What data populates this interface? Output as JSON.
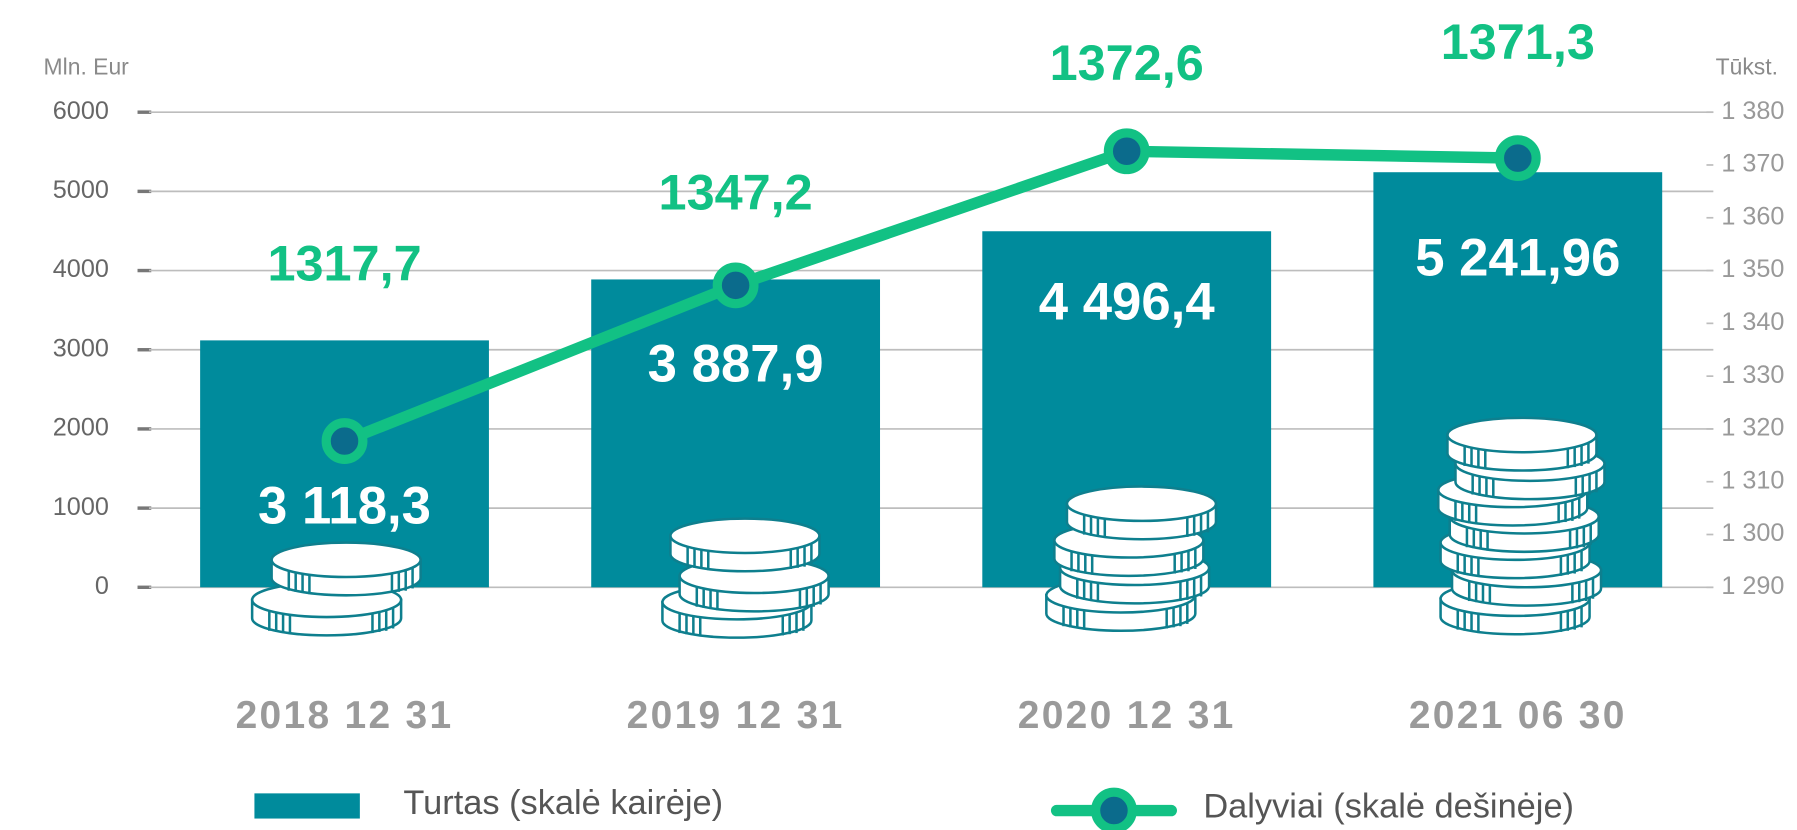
{
  "chart_data": {
    "type": "bar",
    "categories": [
      "2018 12 31",
      "2019 12 31",
      "2020 12 31",
      "2021 06 30"
    ],
    "y_label": "Mln. Eur",
    "y2_label": "Tūkst.",
    "ylim": [
      0,
      6000
    ],
    "yticks": [
      0,
      1000,
      2000,
      3000,
      4000,
      5000,
      6000
    ],
    "y2lim": [
      1290,
      1380
    ],
    "y2ticks": [
      {
        "value": 1290,
        "label": "1 290"
      },
      {
        "value": 1300,
        "label": "1 300"
      },
      {
        "value": 1310,
        "label": "1 310"
      },
      {
        "value": 1320,
        "label": "1 320"
      },
      {
        "value": 1330,
        "label": "1 330"
      },
      {
        "value": 1340,
        "label": "1 340"
      },
      {
        "value": 1350,
        "label": "1 350"
      },
      {
        "value": 1360,
        "label": "1 360"
      },
      {
        "value": 1370,
        "label": "1 370"
      },
      {
        "value": 1380,
        "label": "1 380"
      }
    ],
    "grid": true,
    "series": [
      {
        "name": "Turtas (skalė kairėje)",
        "type": "bar",
        "color": "#008b9c",
        "values": [
          3118.3,
          3887.9,
          4496.4,
          5241.96
        ],
        "value_labels": [
          "3 118,3",
          "3 887,9",
          "4 496,4",
          "5 241,96"
        ]
      },
      {
        "name": "Dalyviai (skalė dešinėje)",
        "type": "line",
        "axis": "y2",
        "color": "#12c184",
        "marker_color": "#0b6b8c",
        "values": [
          1317.7,
          1347.2,
          1372.6,
          1371.3
        ],
        "value_labels": [
          "1317,7",
          "1347,2",
          "1372,6",
          "1371,3"
        ]
      }
    ]
  }
}
